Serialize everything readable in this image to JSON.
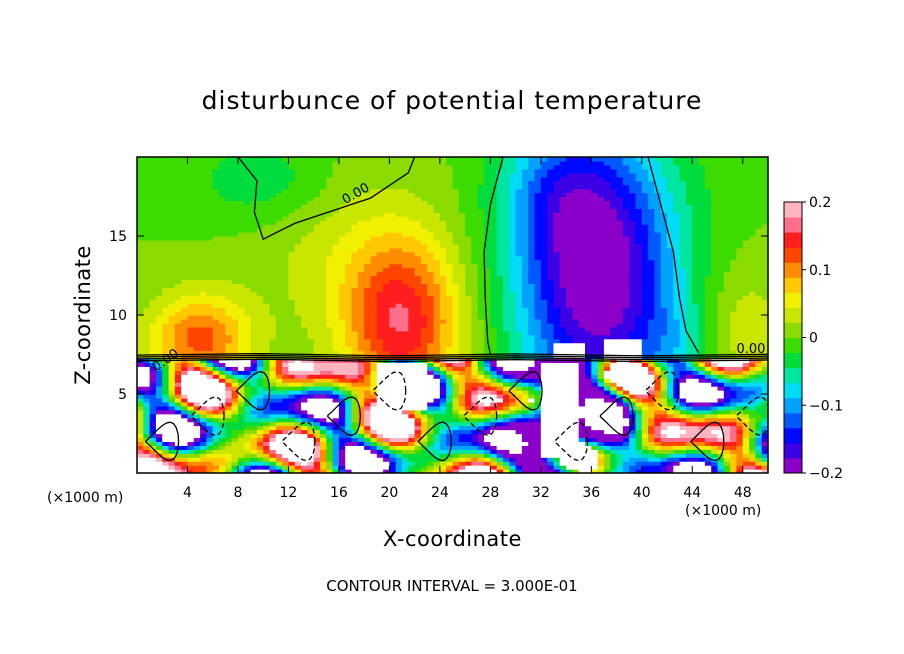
{
  "chart_data": {
    "type": "heatmap",
    "title": "disturbunce of potential temperature",
    "xlabel": "X-coordinate",
    "ylabel": "Z-coordinate",
    "x_unit": "(×1000 m)",
    "y_unit": "(×1000 m)",
    "xlim": [
      0,
      50
    ],
    "ylim": [
      0,
      20
    ],
    "x_ticks": [
      4,
      8,
      12,
      16,
      20,
      24,
      28,
      32,
      36,
      40,
      44,
      48
    ],
    "y_ticks": [
      5,
      10,
      15
    ],
    "colorbar": {
      "range": [
        -0.2,
        0.2
      ],
      "ticks": [
        {
          "value": 0.2,
          "label": "0.2"
        },
        {
          "value": 0.1,
          "label": "0.1"
        },
        {
          "value": 0,
          "label": "0"
        },
        {
          "value": -0.1,
          "label": "−0.1"
        },
        {
          "value": -0.2,
          "label": "−0.2"
        }
      ],
      "colors": [
        "#8a00c8",
        "#3c00e6",
        "#0008ff",
        "#0058ff",
        "#00a2ff",
        "#00dcf5",
        "#00e6a0",
        "#00dc3c",
        "#3cdc00",
        "#8adc00",
        "#c8e600",
        "#f0f000",
        "#ffc800",
        "#ff8c00",
        "#ff4600",
        "#ff1e1e",
        "#ff6e8a",
        "#ffb4c0"
      ]
    },
    "contour_labels": [
      "0.00",
      "0.00",
      "0.00"
    ],
    "contour_interval_text": "CONTOUR INTERVAL = 3.000E-01"
  }
}
